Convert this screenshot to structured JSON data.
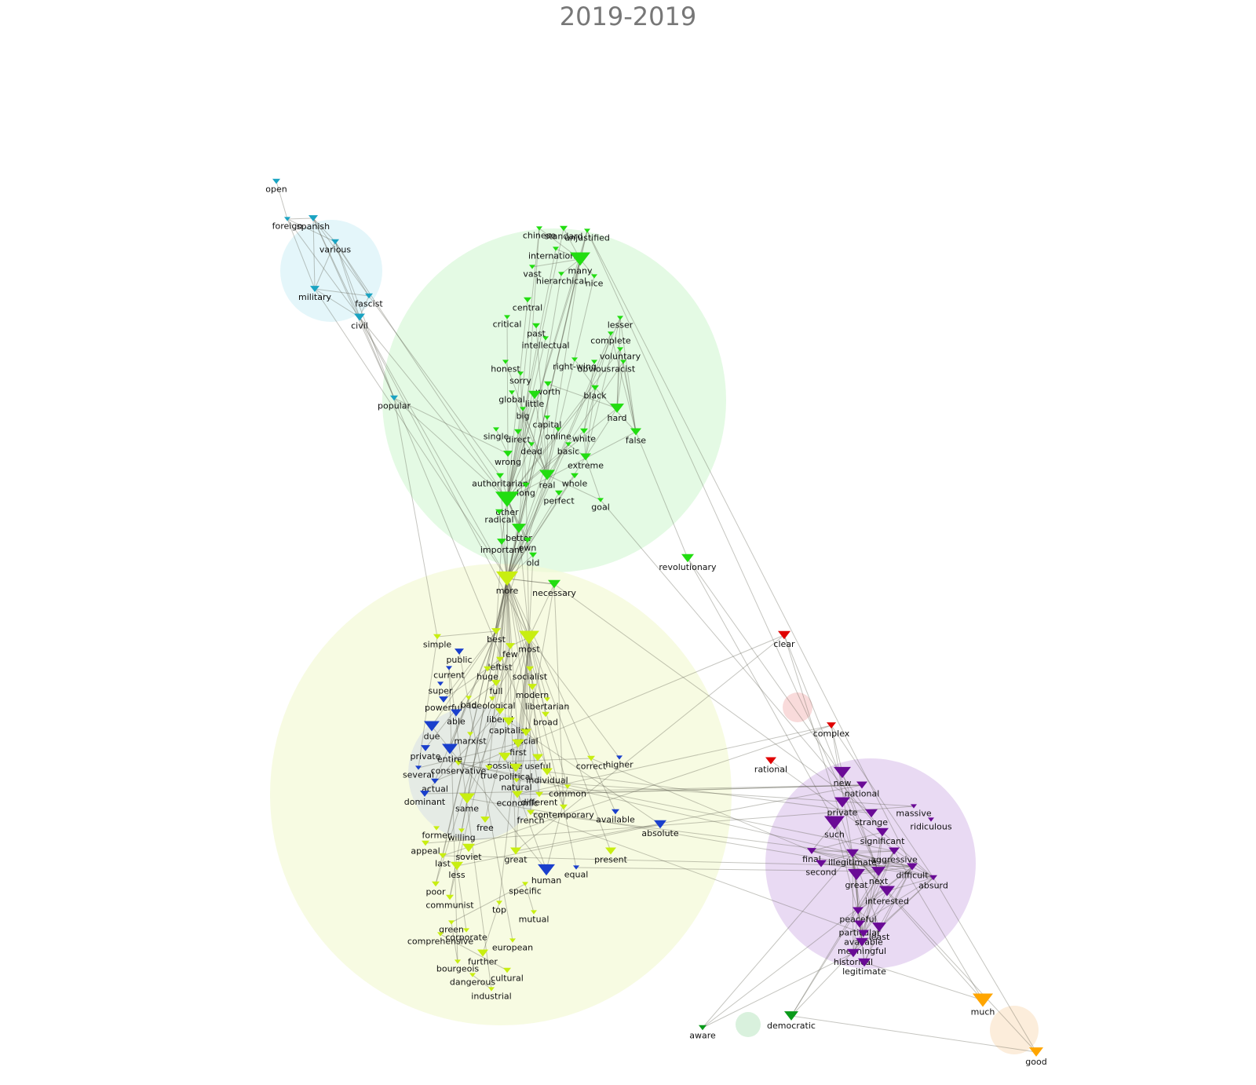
{
  "title": "2019-2019",
  "groups": [
    {
      "id": "cyan",
      "color": "#1aa3c2",
      "bubble": "#cdeef5"
    },
    {
      "id": "green",
      "color": "#22dd11",
      "bubble": "#d6f8d6"
    },
    {
      "id": "lime",
      "color": "#c8ee11",
      "bubble": "#f4fad6"
    },
    {
      "id": "blue",
      "color": "#1a3fcc",
      "bubble": "#cfd8e8"
    },
    {
      "id": "purple",
      "color": "#6a0a96",
      "bubble": "#e2cdef"
    },
    {
      "id": "red",
      "color": "#e00000",
      "bubble": "#f8d2d2"
    },
    {
      "id": "dkgreen",
      "color": "#0a9a1a",
      "bubble": "#cfeed5"
    },
    {
      "id": "orange",
      "color": "#ffa500",
      "bubble": "#fbe9d2"
    }
  ],
  "nodes": [
    {
      "label": "open",
      "group": "cyan"
    },
    {
      "label": "foreign",
      "group": "cyan"
    },
    {
      "label": "spanish",
      "group": "cyan"
    },
    {
      "label": "various",
      "group": "cyan"
    },
    {
      "label": "military",
      "group": "cyan"
    },
    {
      "label": "fascist",
      "group": "cyan"
    },
    {
      "label": "civil",
      "group": "cyan"
    },
    {
      "label": "popular",
      "group": "cyan"
    },
    {
      "label": "chinese",
      "group": "green"
    },
    {
      "label": "standard",
      "group": "green"
    },
    {
      "label": "unjustified",
      "group": "green"
    },
    {
      "label": "international",
      "group": "green"
    },
    {
      "label": "many",
      "group": "green"
    },
    {
      "label": "vast",
      "group": "green"
    },
    {
      "label": "hierarchical",
      "group": "green"
    },
    {
      "label": "nice",
      "group": "green"
    },
    {
      "label": "central",
      "group": "green"
    },
    {
      "label": "critical",
      "group": "green"
    },
    {
      "label": "past",
      "group": "green"
    },
    {
      "label": "lesser",
      "group": "green"
    },
    {
      "label": "complete",
      "group": "green"
    },
    {
      "label": "intellectual",
      "group": "green"
    },
    {
      "label": "voluntary",
      "group": "green"
    },
    {
      "label": "honest",
      "group": "green"
    },
    {
      "label": "right-wing",
      "group": "green"
    },
    {
      "label": "obvious",
      "group": "green"
    },
    {
      "label": "racist",
      "group": "green"
    },
    {
      "label": "sorry",
      "group": "green"
    },
    {
      "label": "worth",
      "group": "green"
    },
    {
      "label": "global",
      "group": "green"
    },
    {
      "label": "little",
      "group": "green"
    },
    {
      "label": "black",
      "group": "green"
    },
    {
      "label": "hard",
      "group": "green"
    },
    {
      "label": "big",
      "group": "green"
    },
    {
      "label": "capital",
      "group": "green"
    },
    {
      "label": "single",
      "group": "green"
    },
    {
      "label": "direct",
      "group": "green"
    },
    {
      "label": "online",
      "group": "green"
    },
    {
      "label": "white",
      "group": "green"
    },
    {
      "label": "false",
      "group": "green"
    },
    {
      "label": "dead",
      "group": "green"
    },
    {
      "label": "basic",
      "group": "green"
    },
    {
      "label": "wrong",
      "group": "green"
    },
    {
      "label": "extreme",
      "group": "green"
    },
    {
      "label": "authoritarian",
      "group": "green"
    },
    {
      "label": "real",
      "group": "green"
    },
    {
      "label": "whole",
      "group": "green"
    },
    {
      "label": "long",
      "group": "green"
    },
    {
      "label": "perfect",
      "group": "green"
    },
    {
      "label": "other",
      "group": "green"
    },
    {
      "label": "goal",
      "group": "green"
    },
    {
      "label": "radical",
      "group": "green"
    },
    {
      "label": "better",
      "group": "green"
    },
    {
      "label": "important",
      "group": "green"
    },
    {
      "label": "own",
      "group": "green"
    },
    {
      "label": "old",
      "group": "green"
    },
    {
      "label": "revolutionary",
      "group": "green"
    },
    {
      "label": "necessary",
      "group": "green"
    },
    {
      "label": "more",
      "group": "lime"
    },
    {
      "label": "best",
      "group": "lime"
    },
    {
      "label": "most",
      "group": "lime"
    },
    {
      "label": "simple",
      "group": "lime"
    },
    {
      "label": "few",
      "group": "lime"
    },
    {
      "label": "leftist",
      "group": "lime"
    },
    {
      "label": "huge",
      "group": "lime"
    },
    {
      "label": "socialist",
      "group": "lime"
    },
    {
      "label": "full",
      "group": "lime"
    },
    {
      "label": "modern",
      "group": "lime"
    },
    {
      "label": "bad",
      "group": "lime"
    },
    {
      "label": "ideological",
      "group": "lime"
    },
    {
      "label": "libertarian",
      "group": "lime"
    },
    {
      "label": "liberal",
      "group": "lime"
    },
    {
      "label": "broad",
      "group": "lime"
    },
    {
      "label": "capitalist",
      "group": "lime"
    },
    {
      "label": "social",
      "group": "lime"
    },
    {
      "label": "marxist",
      "group": "lime"
    },
    {
      "label": "first",
      "group": "lime"
    },
    {
      "label": "possible",
      "group": "lime"
    },
    {
      "label": "useful",
      "group": "lime"
    },
    {
      "label": "correct",
      "group": "lime"
    },
    {
      "label": "conservative",
      "group": "lime"
    },
    {
      "label": "true",
      "group": "lime"
    },
    {
      "label": "political",
      "group": "lime"
    },
    {
      "label": "individual",
      "group": "lime"
    },
    {
      "label": "natural",
      "group": "lime"
    },
    {
      "label": "common",
      "group": "lime"
    },
    {
      "label": "economic",
      "group": "lime"
    },
    {
      "label": "different",
      "group": "lime"
    },
    {
      "label": "same",
      "group": "lime"
    },
    {
      "label": "contemporary",
      "group": "lime"
    },
    {
      "label": "french",
      "group": "lime"
    },
    {
      "label": "free",
      "group": "lime"
    },
    {
      "label": "former",
      "group": "lime"
    },
    {
      "label": "willing",
      "group": "lime"
    },
    {
      "label": "appeal",
      "group": "lime"
    },
    {
      "label": "soviet",
      "group": "lime"
    },
    {
      "label": "present",
      "group": "lime"
    },
    {
      "label": "last",
      "group": "lime"
    },
    {
      "label": "great",
      "group": "lime"
    },
    {
      "label": "less",
      "group": "lime"
    },
    {
      "label": "poor",
      "group": "lime"
    },
    {
      "label": "specific",
      "group": "lime"
    },
    {
      "label": "communist",
      "group": "lime"
    },
    {
      "label": "top",
      "group": "lime"
    },
    {
      "label": "mutual",
      "group": "lime"
    },
    {
      "label": "green",
      "group": "lime"
    },
    {
      "label": "comprehensive",
      "group": "lime"
    },
    {
      "label": "corporate",
      "group": "lime"
    },
    {
      "label": "european",
      "group": "lime"
    },
    {
      "label": "further",
      "group": "lime"
    },
    {
      "label": "bourgeois",
      "group": "lime"
    },
    {
      "label": "dangerous",
      "group": "lime"
    },
    {
      "label": "cultural",
      "group": "lime"
    },
    {
      "label": "industrial",
      "group": "lime"
    },
    {
      "label": "public",
      "group": "blue"
    },
    {
      "label": "current",
      "group": "blue"
    },
    {
      "label": "super",
      "group": "blue"
    },
    {
      "label": "powerful",
      "group": "blue"
    },
    {
      "label": "able",
      "group": "blue"
    },
    {
      "label": "due",
      "group": "blue"
    },
    {
      "label": "private",
      "group": "blue"
    },
    {
      "label": "entire",
      "group": "blue"
    },
    {
      "label": "several",
      "group": "blue"
    },
    {
      "label": "actual",
      "group": "blue"
    },
    {
      "label": "dominant",
      "group": "blue"
    },
    {
      "label": "higher",
      "group": "blue"
    },
    {
      "label": "available",
      "group": "blue"
    },
    {
      "label": "absolute",
      "group": "blue"
    },
    {
      "label": "human",
      "group": "blue"
    },
    {
      "label": "equal",
      "group": "blue"
    },
    {
      "label": "clear",
      "group": "red"
    },
    {
      "label": "complex",
      "group": "red"
    },
    {
      "label": "rational",
      "group": "red"
    },
    {
      "label": "new",
      "group": "purple"
    },
    {
      "label": "national",
      "group": "purple"
    },
    {
      "label": "private",
      "group": "purple"
    },
    {
      "label": "strange",
      "group": "purple"
    },
    {
      "label": "massive",
      "group": "purple"
    },
    {
      "label": "ridiculous",
      "group": "purple"
    },
    {
      "label": "such",
      "group": "purple"
    },
    {
      "label": "significant",
      "group": "purple"
    },
    {
      "label": "final",
      "group": "purple"
    },
    {
      "label": "illegitimate",
      "group": "purple"
    },
    {
      "label": "aggressive",
      "group": "purple"
    },
    {
      "label": "second",
      "group": "purple"
    },
    {
      "label": "difficult",
      "group": "purple"
    },
    {
      "label": "absurd",
      "group": "purple"
    },
    {
      "label": "great",
      "group": "purple"
    },
    {
      "label": "next",
      "group": "purple"
    },
    {
      "label": "interested",
      "group": "purple"
    },
    {
      "label": "peaceful",
      "group": "purple"
    },
    {
      "label": "particular",
      "group": "purple"
    },
    {
      "label": "available",
      "group": "purple"
    },
    {
      "label": "least",
      "group": "purple"
    },
    {
      "label": "meaningful",
      "group": "purple"
    },
    {
      "label": "historical",
      "group": "purple"
    },
    {
      "label": "legitimate",
      "group": "purple"
    },
    {
      "label": "democratic",
      "group": "dkgreen"
    },
    {
      "label": "aware",
      "group": "dkgreen"
    },
    {
      "label": "much",
      "group": "orange"
    },
    {
      "label": "good",
      "group": "orange"
    }
  ]
}
